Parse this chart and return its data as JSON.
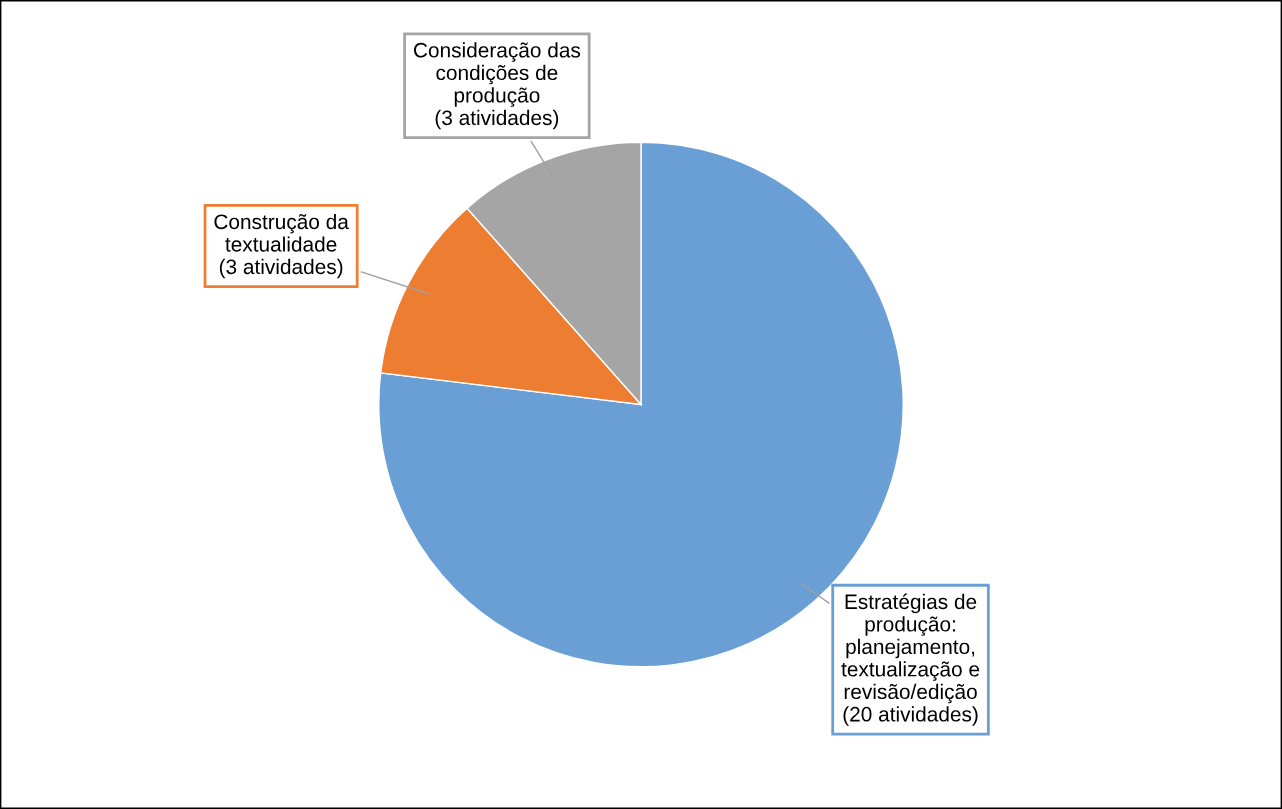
{
  "chart_data": {
    "type": "pie",
    "categories": [
      "Estratégias de\nprodução:\nplanejamento,\ntextualização e\nrevisão/edição\n(20 atividades)",
      "Construção da\ntextualidade\n(3 atividades)",
      "Consideração das\ncondições de\nprodução\n(3 atividades)"
    ],
    "values": [
      20,
      3,
      3
    ],
    "colors": [
      "#6a9fd5",
      "#ed7d31",
      "#a5a5a5"
    ]
  }
}
